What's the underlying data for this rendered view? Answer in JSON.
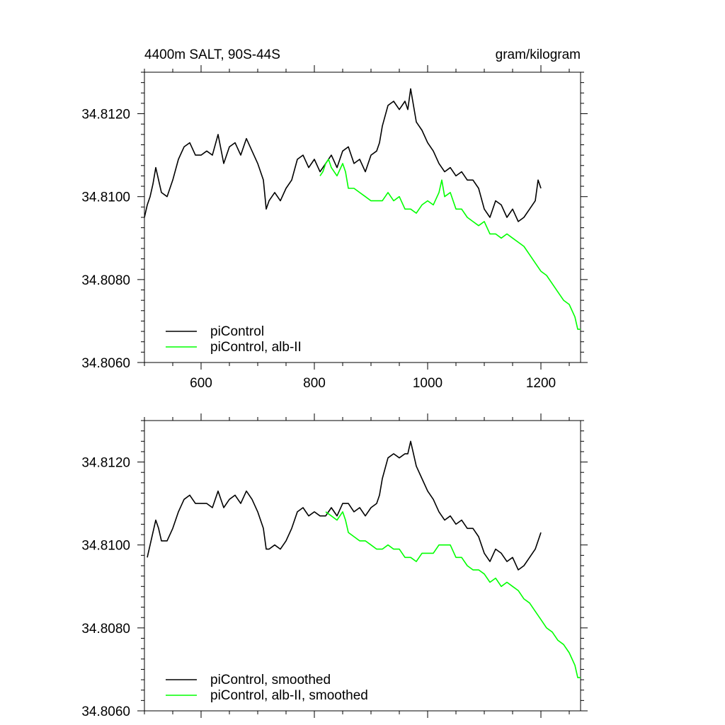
{
  "colors": {
    "control": "#000000",
    "alb": "#00ff00"
  },
  "chart_data": [
    {
      "type": "line",
      "title": "4400m SALT, 90S-44S",
      "units": "gram/kilogram",
      "xlim": [
        500,
        1270
      ],
      "ylim": [
        34.806,
        34.813
      ],
      "xticks": [
        "600",
        "800",
        "1000",
        "1200"
      ],
      "yticks": [
        "34.8060",
        "34.8080",
        "34.8100",
        "34.8120"
      ],
      "legend_position": "bottom-left",
      "series": [
        {
          "name": "piControl",
          "color": "#000000",
          "x": [
            500,
            505,
            510,
            515,
            520,
            525,
            530,
            540,
            550,
            560,
            570,
            580,
            590,
            600,
            610,
            620,
            630,
            640,
            650,
            660,
            670,
            680,
            690,
            700,
            710,
            715,
            720,
            730,
            740,
            750,
            760,
            770,
            780,
            790,
            800,
            810,
            820,
            830,
            840,
            850,
            860,
            870,
            880,
            890,
            900,
            910,
            915,
            920,
            930,
            940,
            950,
            960,
            965,
            970,
            980,
            990,
            1000,
            1010,
            1020,
            1030,
            1040,
            1050,
            1060,
            1070,
            1080,
            1090,
            1100,
            1110,
            1120,
            1130,
            1140,
            1150,
            1160,
            1170,
            1180,
            1190,
            1195,
            1200
          ],
          "y": [
            34.8095,
            34.8098,
            34.81,
            34.8103,
            34.8107,
            34.8104,
            34.8101,
            34.81,
            34.8104,
            34.8109,
            34.8112,
            34.8113,
            34.811,
            34.811,
            34.8111,
            34.811,
            34.8115,
            34.8108,
            34.8112,
            34.8113,
            34.811,
            34.8114,
            34.8111,
            34.8108,
            34.8104,
            34.8097,
            34.8099,
            34.8101,
            34.8099,
            34.8102,
            34.8104,
            34.8109,
            34.811,
            34.8107,
            34.8109,
            34.8106,
            34.8108,
            34.811,
            34.8107,
            34.8111,
            34.8112,
            34.8108,
            34.8109,
            34.8106,
            34.811,
            34.8111,
            34.8113,
            34.8117,
            34.8122,
            34.8123,
            34.8121,
            34.8123,
            34.8121,
            34.8126,
            34.8118,
            34.8116,
            34.8113,
            34.8111,
            34.8108,
            34.8106,
            34.8107,
            34.8105,
            34.8106,
            34.8104,
            34.8104,
            34.8102,
            34.8097,
            34.8095,
            34.8099,
            34.8098,
            34.8095,
            34.8097,
            34.8094,
            34.8095,
            34.8097,
            34.8099,
            34.8104,
            34.8102
          ]
        },
        {
          "name": "piControl, alb-II",
          "color": "#00ff00",
          "x": [
            810,
            815,
            820,
            825,
            830,
            840,
            850,
            855,
            860,
            870,
            880,
            890,
            900,
            910,
            920,
            930,
            940,
            950,
            960,
            970,
            980,
            990,
            1000,
            1010,
            1020,
            1025,
            1030,
            1040,
            1050,
            1060,
            1070,
            1080,
            1090,
            1100,
            1110,
            1120,
            1130,
            1140,
            1150,
            1160,
            1170,
            1180,
            1190,
            1200,
            1210,
            1220,
            1230,
            1240,
            1250,
            1260,
            1265,
            1270
          ],
          "y": [
            34.8105,
            34.8106,
            34.8108,
            34.8109,
            34.8107,
            34.8105,
            34.8108,
            34.8106,
            34.8102,
            34.8102,
            34.8101,
            34.81,
            34.8099,
            34.8099,
            34.8099,
            34.8101,
            34.8099,
            34.81,
            34.8097,
            34.8097,
            34.8096,
            34.8098,
            34.8099,
            34.8098,
            34.8101,
            34.8104,
            34.81,
            34.8101,
            34.8097,
            34.8097,
            34.8095,
            34.8094,
            34.8093,
            34.8094,
            34.8091,
            34.8091,
            34.809,
            34.8091,
            34.809,
            34.8089,
            34.8088,
            34.8086,
            34.8084,
            34.8082,
            34.8081,
            34.8079,
            34.8077,
            34.8075,
            34.8074,
            34.8071,
            34.8068,
            34.8068
          ]
        }
      ]
    },
    {
      "type": "line",
      "xlim": [
        500,
        1270
      ],
      "ylim": [
        34.806,
        34.813
      ],
      "yticks": [
        "34.8060",
        "34.8080",
        "34.8100",
        "34.8120"
      ],
      "legend_position": "bottom-left",
      "series": [
        {
          "name": "piControl, smoothed",
          "color": "#000000",
          "x": [
            505,
            510,
            515,
            520,
            525,
            530,
            540,
            550,
            560,
            570,
            580,
            590,
            600,
            610,
            620,
            630,
            640,
            650,
            660,
            670,
            680,
            690,
            700,
            710,
            715,
            720,
            730,
            740,
            750,
            760,
            770,
            780,
            790,
            800,
            810,
            820,
            830,
            840,
            850,
            860,
            870,
            880,
            890,
            900,
            910,
            915,
            920,
            930,
            940,
            950,
            960,
            965,
            970,
            980,
            990,
            1000,
            1010,
            1020,
            1030,
            1040,
            1050,
            1060,
            1070,
            1080,
            1090,
            1100,
            1110,
            1120,
            1130,
            1140,
            1150,
            1160,
            1170,
            1180,
            1190,
            1195,
            1200
          ],
          "y": [
            34.8097,
            34.81,
            34.8103,
            34.8106,
            34.8104,
            34.8101,
            34.8101,
            34.8104,
            34.8108,
            34.8111,
            34.8112,
            34.811,
            34.811,
            34.811,
            34.8109,
            34.8113,
            34.8109,
            34.8111,
            34.8112,
            34.811,
            34.8113,
            34.8111,
            34.8108,
            34.8104,
            34.8099,
            34.8099,
            34.81,
            34.8099,
            34.8101,
            34.8104,
            34.8108,
            34.8109,
            34.8107,
            34.8108,
            34.8107,
            34.8107,
            34.8109,
            34.8107,
            34.811,
            34.811,
            34.8108,
            34.8109,
            34.8107,
            34.8109,
            34.811,
            34.8112,
            34.8116,
            34.8121,
            34.8122,
            34.8121,
            34.8122,
            34.8122,
            34.8125,
            34.8119,
            34.8116,
            34.8113,
            34.8111,
            34.8108,
            34.8106,
            34.8107,
            34.8105,
            34.8106,
            34.8104,
            34.8104,
            34.8102,
            34.8098,
            34.8096,
            34.8099,
            34.8098,
            34.8096,
            34.8097,
            34.8094,
            34.8095,
            34.8097,
            34.8099,
            34.8101,
            34.8103
          ]
        },
        {
          "name": "piControl, alb-II, smoothed",
          "color": "#00ff00",
          "x": [
            820,
            830,
            840,
            850,
            855,
            860,
            870,
            880,
            890,
            900,
            910,
            920,
            930,
            940,
            950,
            960,
            970,
            980,
            990,
            1000,
            1010,
            1020,
            1030,
            1040,
            1050,
            1060,
            1070,
            1080,
            1090,
            1100,
            1110,
            1120,
            1130,
            1140,
            1150,
            1160,
            1170,
            1180,
            1190,
            1200,
            1210,
            1220,
            1230,
            1240,
            1250,
            1260,
            1265,
            1270
          ],
          "y": [
            34.8108,
            34.8107,
            34.8106,
            34.8108,
            34.8106,
            34.8103,
            34.8102,
            34.8101,
            34.8101,
            34.81,
            34.8099,
            34.8099,
            34.81,
            34.8099,
            34.8099,
            34.8097,
            34.8097,
            34.8096,
            34.8098,
            34.8098,
            34.8098,
            34.81,
            34.81,
            34.81,
            34.8097,
            34.8097,
            34.8095,
            34.8094,
            34.8094,
            34.8093,
            34.8091,
            34.8092,
            34.809,
            34.8091,
            34.809,
            34.8089,
            34.8087,
            34.8086,
            34.8084,
            34.8082,
            34.808,
            34.8079,
            34.8077,
            34.8076,
            34.8074,
            34.8071,
            34.8068,
            34.8068
          ]
        }
      ]
    }
  ]
}
